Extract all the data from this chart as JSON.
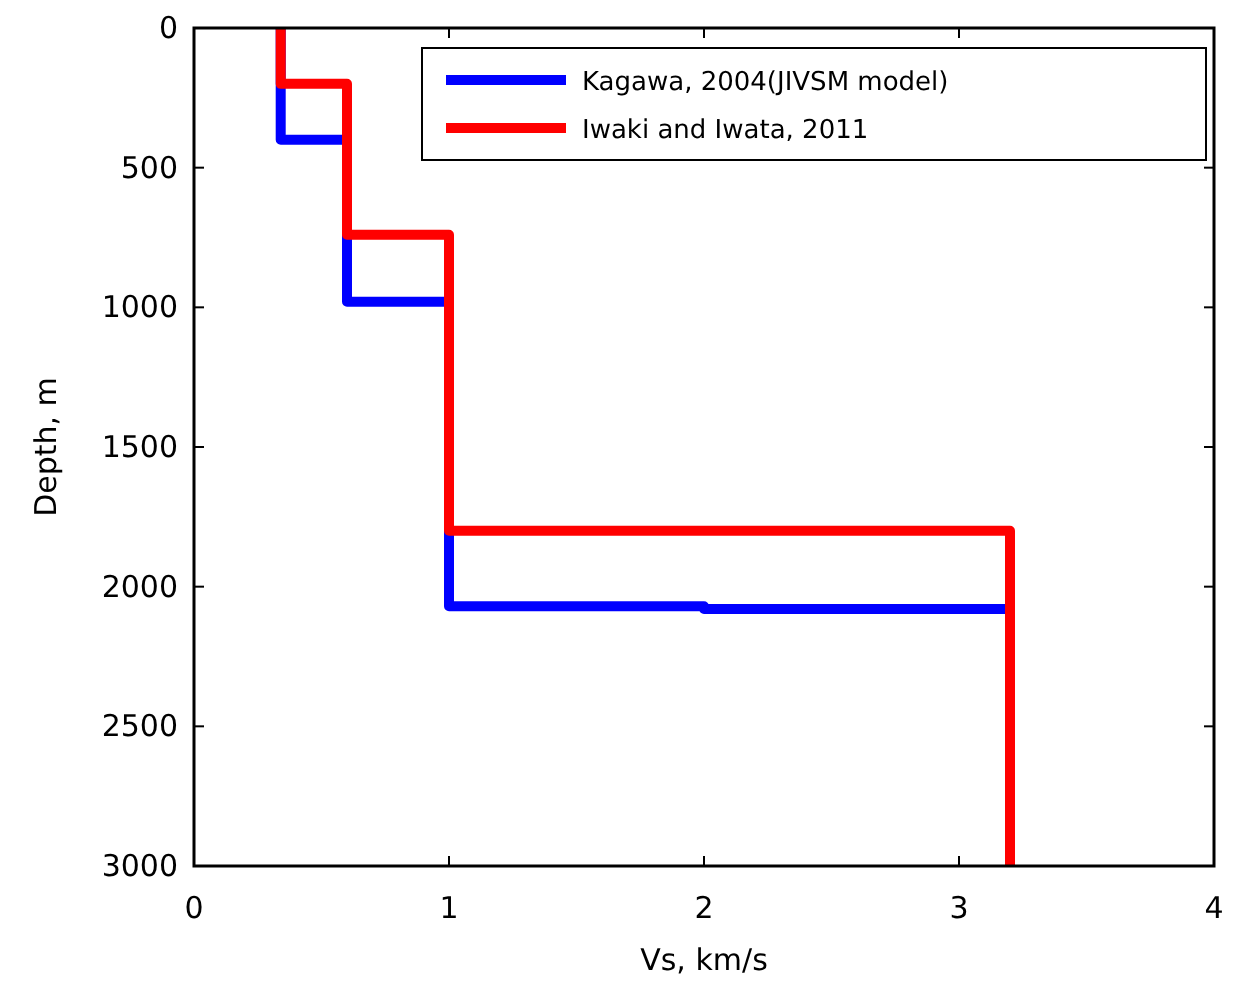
{
  "chart_data": {
    "type": "line",
    "xlabel": "Vs, km/s",
    "ylabel": "Depth, m",
    "xlim": [
      0,
      4
    ],
    "xticks": [
      0,
      1,
      2,
      3,
      4
    ],
    "ylim": [
      3000,
      0
    ],
    "yticks": [
      0,
      500,
      1000,
      1500,
      2000,
      2500,
      3000
    ],
    "grid": false,
    "legend": "top right",
    "marker": "none",
    "line_style": "solid",
    "series": [
      {
        "name": "Kagawa, 2004(JIVSM model)",
        "color": "#0000ff",
        "x": [
          0.34,
          0.34,
          0.6,
          0.6,
          1,
          1,
          2,
          2,
          3.2
        ],
        "values": [
          0,
          400,
          400,
          980,
          980,
          2070,
          2070,
          2080,
          2080
        ]
      },
      {
        "name": "Iwaki and Iwata, 2011",
        "color": "#ff0000",
        "x": [
          0.34,
          0.34,
          0.6,
          0.6,
          1,
          1,
          3.2,
          3.2
        ],
        "values": [
          0,
          200,
          200,
          740,
          740,
          1800,
          1800,
          3000
        ]
      }
    ]
  }
}
